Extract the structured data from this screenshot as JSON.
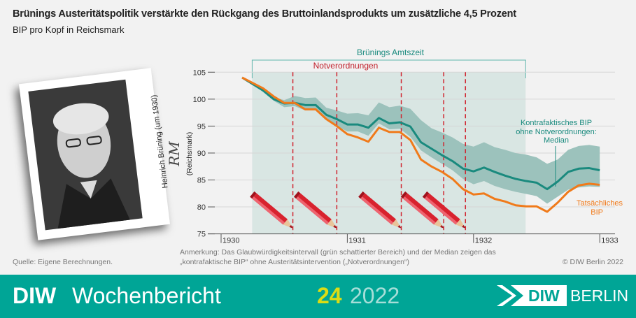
{
  "header": {
    "title": "Brünings Austeritätspolitik verstärkte den Rückgang des Bruttoinlandsprodukts um zusätzliche 4,5 Prozent",
    "subtitle": "BIP pro Kopf in Reichsmark"
  },
  "photo": {
    "caption": "Heinrich Brüning (um 1930)"
  },
  "chart_data": {
    "type": "line",
    "ylabel_symbol": "RM",
    "ylabel": "(Reichsmark)",
    "ylim": [
      75,
      105
    ],
    "yticks": [
      75,
      80,
      85,
      90,
      95,
      100,
      105
    ],
    "xlim": [
      1929.9,
      1933.05
    ],
    "xticks": [
      "1930",
      "1931",
      "1932",
      "1933"
    ],
    "grid": "horizontal",
    "x": [
      "1930-03",
      "1930-04",
      "1930-05",
      "1930-06",
      "1930-07",
      "1930-08",
      "1930-09",
      "1930-10",
      "1930-11",
      "1930-12",
      "1931-01",
      "1931-02",
      "1931-03",
      "1931-04",
      "1931-05",
      "1931-06",
      "1931-07",
      "1931-08",
      "1931-09",
      "1931-10",
      "1931-11",
      "1931-12",
      "1932-01",
      "1932-02",
      "1932-03",
      "1932-04",
      "1932-05",
      "1932-06",
      "1932-07",
      "1932-08",
      "1932-09",
      "1932-10",
      "1932-11",
      "1932-12",
      "1933-01"
    ],
    "series": [
      {
        "name": "Kontrafaktisches BIP ohne Notverordnungen: Median",
        "color": "#1a8a7e",
        "values": [
          104,
          102.8,
          101.6,
          100,
          99.2,
          99.3,
          98.9,
          98.9,
          97.1,
          96.3,
          95.3,
          95.3,
          94.7,
          96.5,
          95.5,
          95.7,
          94.9,
          92.0,
          90.8,
          89.6,
          88.5,
          87.1,
          86.6,
          87.3,
          86.5,
          85.8,
          85.2,
          84.8,
          84.5,
          83.3,
          84.7,
          86.5,
          87.1,
          87.2,
          86.8
        ]
      },
      {
        "name": "Tatsächliches BIP",
        "color": "#f07a1a",
        "values": [
          104,
          103,
          102,
          100.5,
          99.3,
          99.3,
          98.1,
          98.1,
          96.3,
          95.0,
          93.5,
          92.9,
          92.1,
          94.7,
          93.9,
          93.9,
          92.4,
          88.8,
          87.5,
          86.5,
          85.2,
          83.3,
          82.3,
          82.5,
          81.5,
          81.0,
          80.3,
          80.1,
          80.1,
          79.1,
          80.8,
          82.8,
          84.0,
          84.3,
          84.1
        ]
      }
    ],
    "band": {
      "label": "Glaubwürdigkeitsintervall",
      "color": "#9cc2bc",
      "upper": [
        104,
        102.9,
        101.9,
        100.4,
        99.8,
        100.6,
        100.2,
        100.3,
        98.4,
        97.9,
        97.3,
        97.4,
        97.0,
        99.4,
        98.5,
        98.8,
        98.2,
        96.1,
        94.6,
        93.8,
        92.9,
        91.7,
        91.2,
        92.0,
        91.1,
        90.6,
        90.0,
        89.7,
        89.2,
        88.0,
        88.8,
        90.6,
        91.3,
        91.5,
        91.2
      ],
      "lower": [
        104,
        102.7,
        101.3,
        99.7,
        98.5,
        98.7,
        97.9,
        98.0,
        96.1,
        95.0,
        94.0,
        94.0,
        93.2,
        95.5,
        94.4,
        94.5,
        93.0,
        90.5,
        89.2,
        88.0,
        86.8,
        85.2,
        84.2,
        84.8,
        83.9,
        83.3,
        82.8,
        82.4,
        82.0,
        80.6,
        81.9,
        83.2,
        83.6,
        83.8,
        83.7
      ]
    },
    "period": {
      "label": "Brünings Amtszeit",
      "start": "1930-03-30",
      "end": "1932-05-30",
      "color": "#d9e6e3"
    },
    "decrees": {
      "label": "Notverordnungen",
      "color": "#d0242f",
      "dates": [
        "1930-07-26",
        "1930-12-01",
        "1931-06-05",
        "1931-10-06",
        "1931-12-08"
      ]
    },
    "annotations": {
      "median": [
        "Kontrafaktisches BIP",
        "ohne Notverordnungen:",
        "Median"
      ],
      "actual": [
        "Tatsächliches",
        "BIP"
      ]
    }
  },
  "notes": {
    "source": "Quelle: Eigene Berechnungen.",
    "remark_1": "Anmerkung: Das Glaubwürdigkeitsintervall (grün schattierter Bereich) und der Median zeigen das",
    "remark_2": "„kontrafaktische BIP“ ohne Austeritätsintervention („Notverordnungen“)",
    "copyright": "© DIW Berlin 2022"
  },
  "footer": {
    "brand": "DIW",
    "publication": "Wochenbericht",
    "issue": "24",
    "year": "2022",
    "logo_text": "DIW",
    "logo_city": "BERLIN",
    "bg": "#00a596",
    "issue_color": "#dcdc14"
  }
}
